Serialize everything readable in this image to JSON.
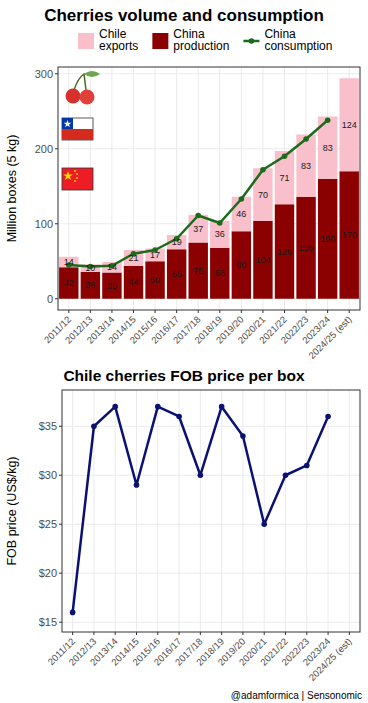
{
  "chart_data": [
    {
      "type": "bar",
      "title": "Cherries volume and consumption",
      "y_label": "Million boxes (5 kg)",
      "categories": [
        "2011/12",
        "2012/13",
        "2013/14",
        "2014/15",
        "2015/16",
        "2016/17",
        "2017/18",
        "2018/19",
        "2019/20",
        "2020/21",
        "2021/22",
        "2022/23",
        "2023/24",
        "2024/25 (est)"
      ],
      "series": [
        {
          "name": "Chile exports",
          "type": "bar",
          "color": "#f9c0cc",
          "values": [
            14,
            10,
            14,
            21,
            17,
            19,
            37,
            36,
            46,
            70,
            71,
            83,
            83,
            124
          ]
        },
        {
          "name": "China production",
          "type": "bar",
          "color": "#8b0000",
          "values": [
            42,
            36,
            35,
            44,
            50,
            66,
            75,
            68,
            90,
            104,
            126,
            136,
            160,
            170
          ]
        },
        {
          "name": "China consumption",
          "type": "line",
          "color": "#1a6b1a",
          "marker": "circle",
          "values": [
            45,
            43,
            44,
            60,
            65,
            80,
            111,
            101,
            133,
            172,
            190,
            213,
            238,
            null
          ]
        }
      ],
      "stacked": true,
      "data_labels": true,
      "legend": "top",
      "grid": true,
      "ylim": [
        -15,
        309
      ],
      "yticks": [
        0,
        100,
        200,
        300
      ]
    },
    {
      "type": "line",
      "title": "Chile cherries FOB price per box",
      "y_label": "FOB price (US$/kg)",
      "categories": [
        "2011/12",
        "2012/13",
        "2013/14",
        "2014/15",
        "2015/16",
        "2016/17",
        "2017/18",
        "2018/19",
        "2019/20",
        "2020/21",
        "2021/22",
        "2022/23",
        "2023/24",
        "2024/25 (est)"
      ],
      "values": [
        16,
        35,
        37,
        29,
        37,
        36,
        30,
        37,
        34,
        25,
        30,
        31,
        36,
        null
      ],
      "color": "#0a1172",
      "marker": "circle",
      "grid": true,
      "ylim": [
        14,
        38.7
      ],
      "yticks": [
        {
          "value": 15,
          "label": "$15"
        },
        {
          "value": 20,
          "label": "$20"
        },
        {
          "value": 25,
          "label": "$25"
        },
        {
          "value": 30,
          "label": "$30"
        },
        {
          "value": 35,
          "label": "$35"
        }
      ]
    }
  ],
  "footer": {
    "credit": "@adamformica | Sensonomic"
  }
}
